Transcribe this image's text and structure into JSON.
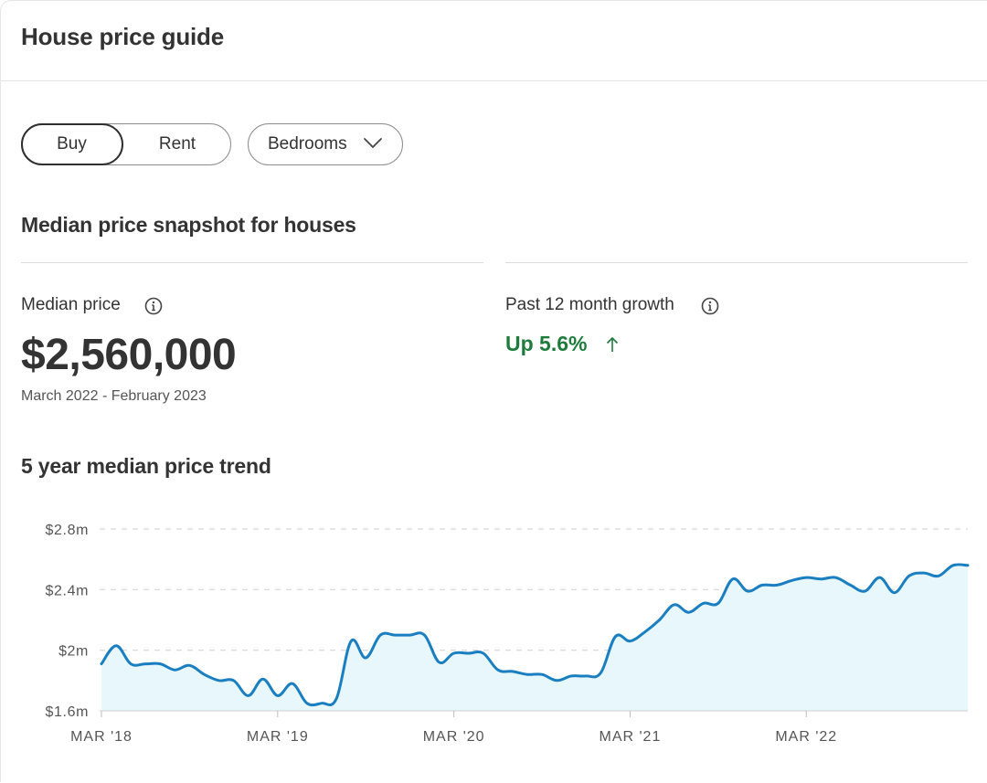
{
  "header": {
    "title": "House price guide"
  },
  "toggle": {
    "buy_label": "Buy",
    "rent_label": "Rent",
    "selected": "Buy"
  },
  "filter": {
    "bedrooms_label": "Bedrooms",
    "icon": "chevron-down-icon"
  },
  "snapshot": {
    "title": "Median price snapshot for houses",
    "median_label": "Median price",
    "median_value": "$2,560,000",
    "period": "March 2022 - February 2023",
    "growth_label": "Past 12 month growth",
    "growth_value": "Up 5.6%",
    "growth_icon": "arrow-up-icon",
    "growth_color": "#1e7b3c"
  },
  "trend": {
    "title": "5 year median price trend"
  },
  "colors": {
    "line": "#1a7fc1",
    "fill": "#e8f7fb",
    "grid": "#d6d6d6",
    "axis_text": "#555555"
  },
  "chart_data": {
    "type": "area",
    "x_tick_labels": [
      "MAR '18",
      "MAR '19",
      "MAR '20",
      "MAR '21",
      "MAR '22"
    ],
    "y_tick_labels": [
      "$1.6m",
      "$2m",
      "$2.4m",
      "$2.8m"
    ],
    "y_ticks": [
      1.6,
      2.0,
      2.4,
      2.8
    ],
    "ylim": [
      1.6,
      2.8
    ],
    "xlim": [
      "2018-03",
      "2023-02"
    ],
    "grid": "horizontal-dashed",
    "series": [
      {
        "x": [
          "2018-03",
          "2018-04",
          "2018-05",
          "2018-06",
          "2018-07",
          "2018-08",
          "2018-09",
          "2018-10",
          "2018-11",
          "2018-12",
          "2019-01",
          "2019-02",
          "2019-03",
          "2019-04",
          "2019-05",
          "2019-06",
          "2019-07",
          "2019-08",
          "2019-09",
          "2019-10",
          "2019-11",
          "2019-12",
          "2020-01",
          "2020-02",
          "2020-03",
          "2020-04",
          "2020-05",
          "2020-06",
          "2020-07",
          "2020-08",
          "2020-09",
          "2020-10",
          "2020-11",
          "2020-12",
          "2021-01",
          "2021-02",
          "2021-03",
          "2021-04",
          "2021-05",
          "2021-06",
          "2021-07",
          "2021-08",
          "2021-09",
          "2021-10",
          "2021-11",
          "2021-12",
          "2022-01",
          "2022-02",
          "2022-03",
          "2022-04",
          "2022-05",
          "2022-06",
          "2022-07",
          "2022-08",
          "2022-09",
          "2022-10",
          "2022-11",
          "2022-12",
          "2023-01",
          "2023-02"
        ],
        "y": [
          1.91,
          2.03,
          1.91,
          1.91,
          1.91,
          1.87,
          1.9,
          1.84,
          1.8,
          1.8,
          1.7,
          1.81,
          1.7,
          1.78,
          1.65,
          1.65,
          1.68,
          2.06,
          1.95,
          2.1,
          2.1,
          2.1,
          2.1,
          1.92,
          1.98,
          1.98,
          1.98,
          1.87,
          1.86,
          1.84,
          1.84,
          1.8,
          1.83,
          1.83,
          1.85,
          2.09,
          2.06,
          2.12,
          2.2,
          2.3,
          2.25,
          2.31,
          2.31,
          2.47,
          2.39,
          2.43,
          2.43,
          2.46,
          2.48,
          2.47,
          2.48,
          2.43,
          2.39,
          2.48,
          2.38,
          2.49,
          2.51,
          2.49,
          2.56,
          2.56
        ]
      }
    ]
  }
}
